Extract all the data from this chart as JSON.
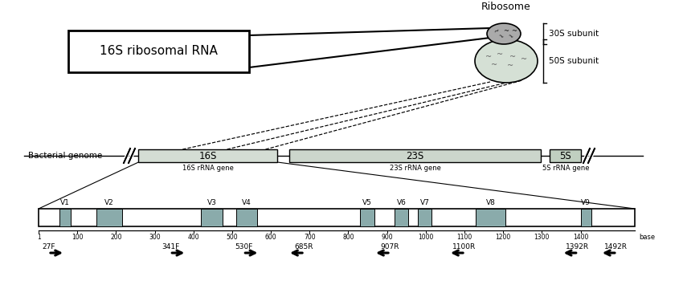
{
  "bg_color": "#ffffff",
  "ribosome_label": "Ribosome",
  "rna_box_label": "16S ribosomal RNA",
  "subunit_30s": "30S subunit",
  "subunit_50s": "50S subunit",
  "bacterial_genome_label": "Bacterial genome",
  "v_regions": [
    "V1",
    "V2",
    "V3",
    "V4",
    "V5",
    "V6",
    "V7",
    "V8",
    "V9"
  ],
  "v_region_color": "#8aabab",
  "v_region_positions": [
    55,
    150,
    420,
    510,
    830,
    920,
    980,
    1130,
    1400
  ],
  "v_region_widths": [
    28,
    65,
    55,
    55,
    38,
    35,
    35,
    75,
    28
  ],
  "primer_labels": [
    "27F",
    "341F",
    "530F",
    "685R",
    "907R",
    "1100R",
    "1392R",
    "1492R"
  ],
  "primer_positions": [
    27,
    341,
    530,
    685,
    907,
    1100,
    1392,
    1492
  ],
  "primer_directions": [
    1,
    1,
    1,
    -1,
    -1,
    -1,
    -1,
    -1
  ],
  "axis_ticks": [
    1,
    100,
    200,
    300,
    400,
    500,
    600,
    700,
    800,
    900,
    1000,
    1100,
    1200,
    1300,
    1400
  ],
  "axis_max": 1500,
  "gene_16s": {
    "label": "16S",
    "sub": "16S rRNA gene",
    "b0": 1,
    "b1": 470,
    "color": "#d4ddd4"
  },
  "gene_23s": {
    "label": "23S",
    "sub": "23S rRNA gene",
    "b0": 510,
    "b1": 1360,
    "color": "#ccd6cc"
  },
  "gene_5s": {
    "label": "5S",
    "sub": "5S rRNA gene",
    "b0": 1390,
    "b1": 1495,
    "color": "#c0cfc0"
  }
}
